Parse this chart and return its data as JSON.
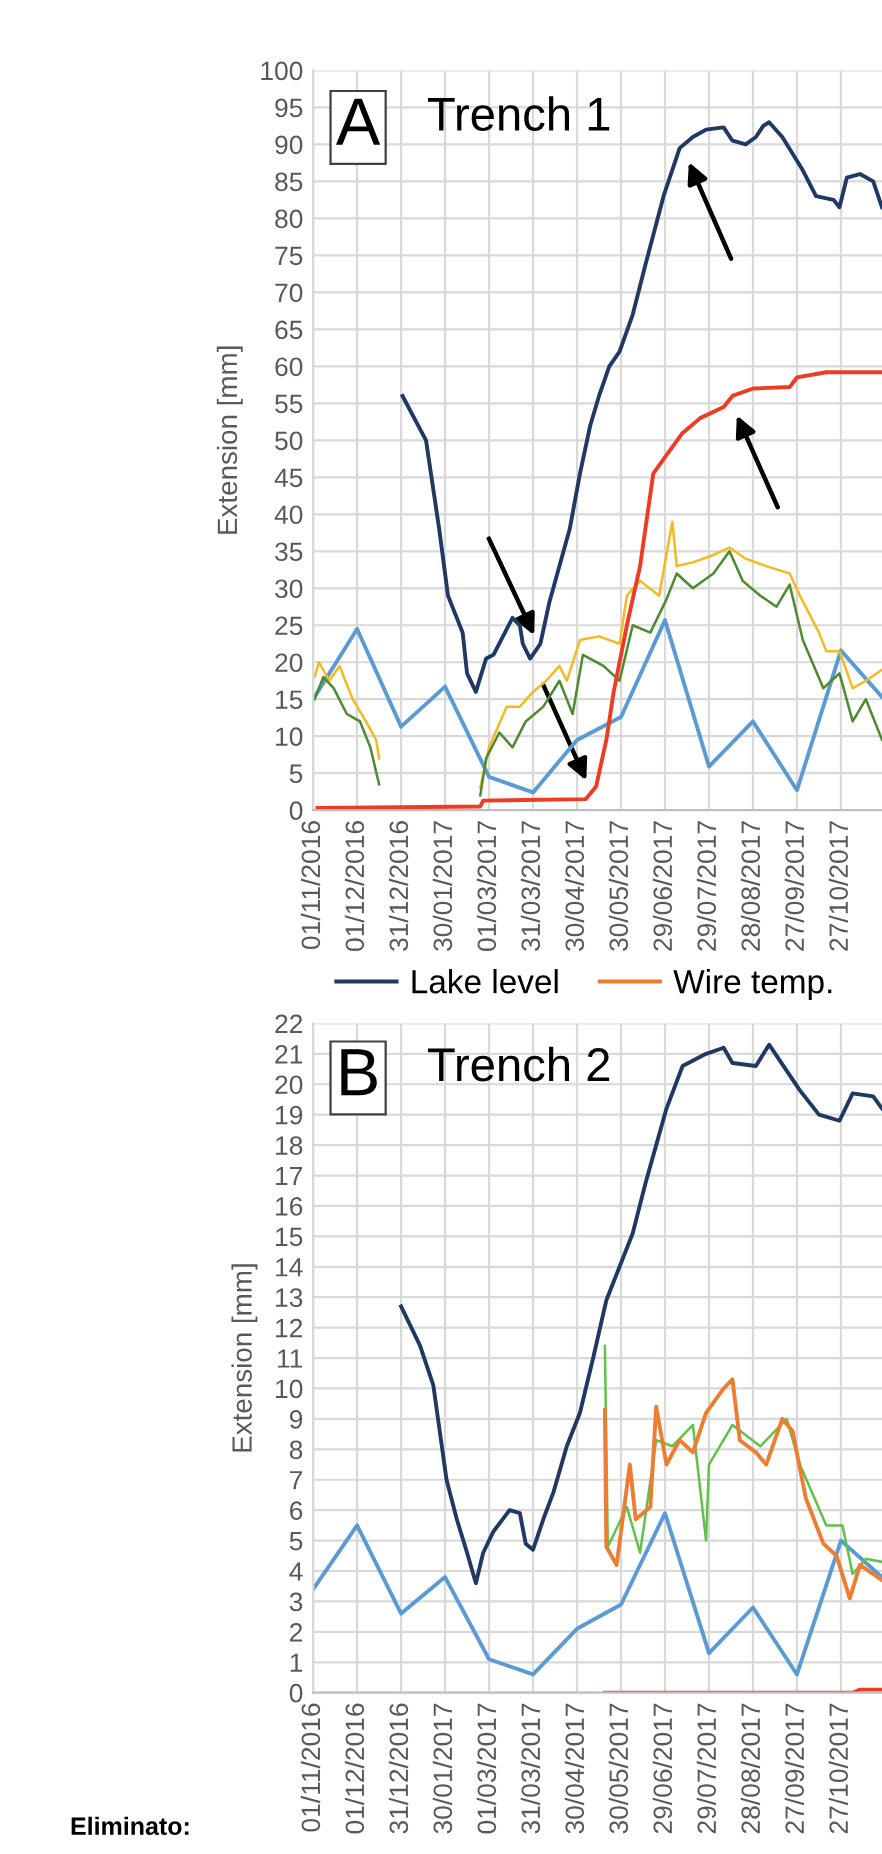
{
  "chart_data": [
    {
      "type": "line",
      "title": "Trench 1",
      "annotations": [
        "A"
      ],
      "ylabel": "Extension [mm]",
      "xlim": [
        "2016-11-01",
        "2017-11-24"
      ],
      "ylim": [
        0,
        100
      ],
      "yticks": [
        0,
        5,
        10,
        15,
        20,
        25,
        30,
        35,
        40,
        45,
        50,
        55,
        60,
        65,
        70,
        75,
        80,
        85,
        90,
        95,
        100
      ],
      "xticks": [
        {
          "value": "2016-11-01",
          "label": "01/11/2016"
        },
        {
          "value": "2016-12-01",
          "label": "01/12/2016"
        },
        {
          "value": "2016-12-31",
          "label": "31/12/2016"
        },
        {
          "value": "2017-01-30",
          "label": "30/01/2017"
        },
        {
          "value": "2017-03-01",
          "label": "01/03/2017"
        },
        {
          "value": "2017-03-31",
          "label": "31/03/2017"
        },
        {
          "value": "2017-04-30",
          "label": "30/04/2017"
        },
        {
          "value": "2017-05-30",
          "label": "30/05/2017"
        },
        {
          "value": "2017-06-29",
          "label": "29/06/2017"
        },
        {
          "value": "2017-07-29",
          "label": "29/07/2017"
        },
        {
          "value": "2017-08-28",
          "label": "28/08/2017"
        },
        {
          "value": "2017-09-27",
          "label": "27/09/2017"
        },
        {
          "value": "2017-10-27",
          "label": "27/10/2017"
        }
      ],
      "grid": true,
      "series": [
        {
          "color": "#5b9bd5",
          "x": [
            "2016-11-01",
            "2016-12-01",
            "2016-12-31",
            "2017-01-30",
            "2017-03-01",
            "2017-03-31",
            "2017-04-30",
            "2017-05-30",
            "2017-06-29",
            "2017-07-29",
            "2017-08-28",
            "2017-09-27",
            "2017-10-27",
            "2017-11-24"
          ],
          "values": [
            15,
            24.5,
            11.3,
            16.7,
            4.5,
            2.4,
            9.5,
            12.6,
            25.7,
            5.9,
            12,
            2.7,
            21.6,
            15.3
          ]
        },
        {
          "color": "#f5b921",
          "x": [
            "2016-11-02",
            "2016-11-05",
            "2016-11-12",
            "2016-11-19",
            "2016-11-28",
            "2016-12-07",
            "2016-12-14",
            "2016-12-16",
            "2017-01-15",
            "2017-02-23",
            "2017-03-01",
            "2017-03-13",
            "2017-03-22",
            "2017-03-31",
            "2017-04-09",
            "2017-04-18",
            "2017-04-23",
            "2017-05-02",
            "2017-05-15",
            "2017-05-29",
            "2017-06-03",
            "2017-06-12",
            "2017-06-25",
            "2017-07-04",
            "2017-07-07",
            "2017-07-18",
            "2017-08-01",
            "2017-08-12",
            "2017-08-23",
            "2017-09-06",
            "2017-09-22",
            "2017-09-29",
            "2017-10-12",
            "2017-10-17",
            "2017-10-26",
            "2017-11-04",
            "2017-11-13",
            "2017-11-24"
          ],
          "values": [
            18,
            20,
            17.5,
            19.5,
            15,
            12,
            9.5,
            7,
            null,
            3,
            8.5,
            14,
            14,
            16,
            17.5,
            19.5,
            17.5,
            23,
            23.5,
            22.5,
            29,
            31,
            29,
            39,
            33,
            33.5,
            34.5,
            35.5,
            34,
            33,
            32,
            29,
            24,
            21.5,
            21.5,
            16.5,
            17.5,
            19
          ]
        },
        {
          "color": "#4e8a2e",
          "x": [
            "2016-11-02",
            "2016-11-08",
            "2016-11-15",
            "2016-11-24",
            "2016-12-03",
            "2016-12-10",
            "2016-12-16",
            "2017-01-15",
            "2017-02-23",
            "2017-02-27",
            "2017-03-08",
            "2017-03-17",
            "2017-03-26",
            "2017-04-07",
            "2017-04-18",
            "2017-04-27",
            "2017-05-04",
            "2017-05-18",
            "2017-05-29",
            "2017-06-07",
            "2017-06-19",
            "2017-06-30",
            "2017-07-07",
            "2017-07-18",
            "2017-08-01",
            "2017-08-12",
            "2017-08-21",
            "2017-09-02",
            "2017-09-13",
            "2017-09-22",
            "2017-10-01",
            "2017-10-15",
            "2017-10-26",
            "2017-11-04",
            "2017-11-13",
            "2017-11-24"
          ],
          "values": [
            15,
            18,
            16.5,
            13,
            12,
            8.5,
            3.5,
            null,
            2,
            7,
            10.5,
            8.5,
            12,
            14,
            17.5,
            13,
            21,
            19.5,
            17.5,
            25,
            24,
            28.5,
            32,
            30,
            32,
            35,
            31,
            29,
            27.5,
            30.5,
            23,
            16.5,
            18.5,
            12,
            15,
            9.5
          ]
        },
        {
          "color": "#ee3b24",
          "x": [
            "2016-11-04",
            "2017-02-23",
            "2017-02-25",
            "2017-05-06",
            "2017-05-13",
            "2017-05-20",
            "2017-05-25",
            "2017-06-03",
            "2017-06-12",
            "2017-06-21",
            "2017-06-30",
            "2017-07-11",
            "2017-07-23",
            "2017-08-08",
            "2017-08-14",
            "2017-08-28",
            "2017-09-22",
            "2017-09-27",
            "2017-10-17",
            "2017-11-24"
          ],
          "values": [
            0.3,
            0.5,
            1.3,
            1.5,
            3.2,
            9.5,
            16,
            25,
            33,
            45.5,
            48,
            51,
            53,
            54.5,
            56,
            57,
            57.2,
            58.5,
            59.2,
            59.2
          ]
        },
        {
          "color": "#1f3864",
          "x": [
            "2017-01-01",
            "2017-01-17",
            "2017-01-26",
            "2017-02-01",
            "2017-02-07",
            "2017-02-11",
            "2017-02-14",
            "2017-02-20",
            "2017-02-27",
            "2017-03-04",
            "2017-03-17",
            "2017-03-22",
            "2017-03-24",
            "2017-03-29",
            "2017-04-05",
            "2017-04-11",
            "2017-04-18",
            "2017-04-25",
            "2017-05-02",
            "2017-05-09",
            "2017-05-15",
            "2017-05-22",
            "2017-05-29",
            "2017-06-07",
            "2017-06-16",
            "2017-06-28",
            "2017-07-09",
            "2017-07-18",
            "2017-07-27",
            "2017-08-08",
            "2017-08-14",
            "2017-08-23",
            "2017-08-30",
            "2017-09-04",
            "2017-09-08",
            "2017-09-17",
            "2017-10-01",
            "2017-10-10",
            "2017-10-22",
            "2017-10-26",
            "2017-10-31",
            "2017-11-09",
            "2017-11-18",
            "2017-11-24"
          ],
          "values": [
            56,
            50,
            38,
            29,
            26,
            24,
            18.5,
            16,
            20.5,
            21,
            26,
            25,
            22.5,
            20.5,
            22.5,
            28,
            33,
            38,
            45.5,
            52,
            56,
            60,
            62,
            67,
            74,
            83,
            89.5,
            91,
            92,
            92.3,
            90.5,
            90,
            91,
            92.5,
            93,
            91,
            86.5,
            83,
            82.5,
            81.5,
            85.5,
            86,
            85,
            81.5
          ]
        }
      ]
    },
    {
      "type": "line",
      "title": "Trench 2",
      "annotations": [
        "B",
        "Eliminato:"
      ],
      "ylabel": "Extension [mm]",
      "xlim": [
        "2016-11-01",
        "2017-11-24"
      ],
      "ylim": [
        0,
        22
      ],
      "yticks": [
        0,
        1,
        2,
        3,
        4,
        5,
        6,
        7,
        8,
        9,
        10,
        11,
        12,
        13,
        14,
        15,
        16,
        17,
        18,
        19,
        20,
        21,
        22
      ],
      "xticks": [
        {
          "value": "2016-11-01",
          "label": "01/11/2016"
        },
        {
          "value": "2016-12-01",
          "label": "01/12/2016"
        },
        {
          "value": "2016-12-31",
          "label": "31/12/2016"
        },
        {
          "value": "2017-01-30",
          "label": "30/01/2017"
        },
        {
          "value": "2017-03-01",
          "label": "01/03/2017"
        },
        {
          "value": "2017-03-31",
          "label": "31/03/2017"
        },
        {
          "value": "2017-04-30",
          "label": "30/04/2017"
        },
        {
          "value": "2017-05-30",
          "label": "30/05/2017"
        },
        {
          "value": "2017-06-29",
          "label": "29/06/2017"
        },
        {
          "value": "2017-07-29",
          "label": "29/07/2017"
        },
        {
          "value": "2017-08-28",
          "label": "28/08/2017"
        },
        {
          "value": "2017-09-27",
          "label": "27/09/2017"
        },
        {
          "value": "2017-10-27",
          "label": "27/10/2017"
        }
      ],
      "grid": true,
      "legend": "top",
      "series": [
        {
          "color": "#5b9bd5",
          "x": [
            "2016-11-01",
            "2016-12-01",
            "2016-12-31",
            "2017-01-30",
            "2017-03-01",
            "2017-03-31",
            "2017-04-30",
            "2017-05-30",
            "2017-06-29",
            "2017-07-29",
            "2017-08-28",
            "2017-09-27",
            "2017-10-27",
            "2017-11-24"
          ],
          "values": [
            3.4,
            5.5,
            2.6,
            3.8,
            1.1,
            0.6,
            2.1,
            2.9,
            5.9,
            1.3,
            2.8,
            0.6,
            5.0,
            3.8
          ]
        },
        {
          "color": "#ee3b24",
          "x": [
            "2017-05-19",
            "2017-11-04",
            "2017-11-09",
            "2017-11-24"
          ],
          "values": [
            0,
            0,
            0.1,
            0.1
          ]
        },
        {
          "color": "#5fc24a",
          "x": [
            "2017-05-19",
            "2017-05-21",
            "2017-06-03",
            "2017-06-12",
            "2017-06-23",
            "2017-07-04",
            "2017-07-18",
            "2017-07-27",
            "2017-07-29",
            "2017-08-14",
            "2017-09-02",
            "2017-09-20",
            "2017-09-29",
            "2017-10-17",
            "2017-10-28",
            "2017-11-04",
            "2017-11-13",
            "2017-11-24"
          ],
          "values": [
            11.4,
            4.8,
            6.1,
            4.6,
            8.3,
            8.1,
            8.8,
            5,
            7.5,
            8.8,
            8.1,
            9,
            7.5,
            5.5,
            5.5,
            3.9,
            4.4,
            4.3
          ]
        },
        {
          "name": "Wire temp.",
          "color": "#ed7d31",
          "x": [
            "2017-05-19",
            "2017-05-20",
            "2017-05-27",
            "2017-06-05",
            "2017-06-09",
            "2017-06-19",
            "2017-06-23",
            "2017-06-30",
            "2017-07-09",
            "2017-07-18",
            "2017-07-27",
            "2017-08-08",
            "2017-08-14",
            "2017-08-19",
            "2017-08-30",
            "2017-09-06",
            "2017-09-17",
            "2017-09-24",
            "2017-10-03",
            "2017-10-15",
            "2017-10-24",
            "2017-11-02",
            "2017-11-09",
            "2017-11-24"
          ],
          "values": [
            9.3,
            4.8,
            4.2,
            7.5,
            5.7,
            6.1,
            9.4,
            7.5,
            8.3,
            7.9,
            9.2,
            10,
            10.3,
            8.3,
            7.9,
            7.5,
            9,
            8.6,
            6.4,
            4.9,
            4.5,
            3.1,
            4.2,
            3.7
          ]
        },
        {
          "name": "Lake level",
          "color": "#1f3864",
          "x": [
            "2016-12-31",
            "2017-01-13",
            "2017-01-22",
            "2017-01-31",
            "2017-02-07",
            "2017-02-14",
            "2017-02-20",
            "2017-02-25",
            "2017-03-04",
            "2017-03-15",
            "2017-03-22",
            "2017-03-26",
            "2017-03-31",
            "2017-04-07",
            "2017-04-14",
            "2017-04-23",
            "2017-05-02",
            "2017-05-11",
            "2017-05-20",
            "2017-05-29",
            "2017-06-07",
            "2017-06-16",
            "2017-06-30",
            "2017-07-11",
            "2017-07-27",
            "2017-08-08",
            "2017-08-14",
            "2017-08-30",
            "2017-09-08",
            "2017-09-29",
            "2017-10-12",
            "2017-10-26",
            "2017-11-04",
            "2017-11-18",
            "2017-11-24"
          ],
          "values": [
            12.7,
            11.4,
            10.1,
            7,
            5.7,
            4.6,
            3.6,
            4.6,
            5.3,
            6,
            5.9,
            4.9,
            4.7,
            5.7,
            6.6,
            8.1,
            9.2,
            11,
            12.9,
            14,
            15.1,
            16.8,
            19.2,
            20.6,
            21,
            21.2,
            20.7,
            20.6,
            21.3,
            19.8,
            19,
            18.8,
            19.7,
            19.6,
            19.2
          ]
        }
      ]
    }
  ]
}
